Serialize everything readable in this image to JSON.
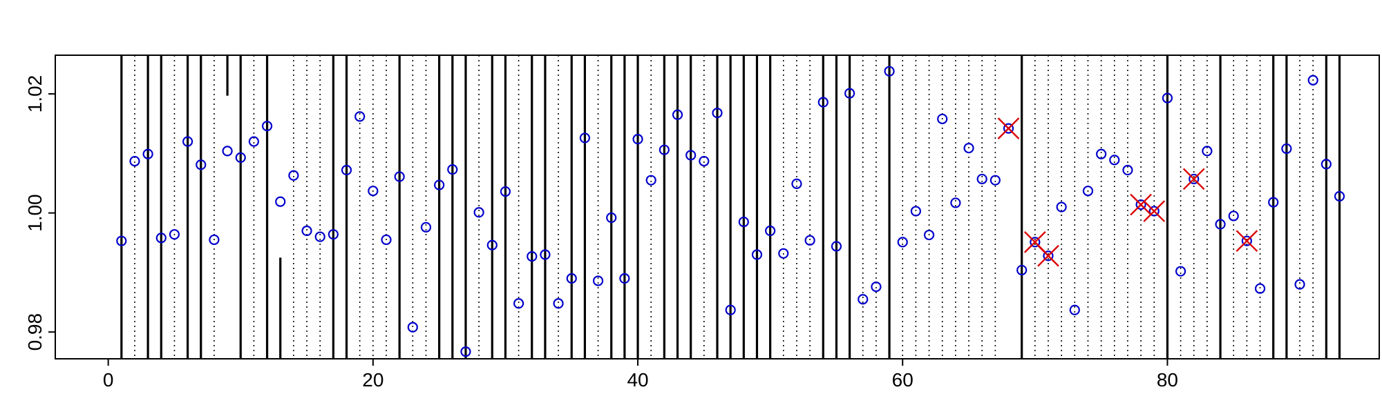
{
  "chart_data": {
    "type": "scatter",
    "title": "",
    "xlabel": "",
    "ylabel": "",
    "xlim": [
      -4,
      96
    ],
    "ylim": [
      0.9755,
      1.0265
    ],
    "x_ticks": [
      0,
      20,
      40,
      60,
      80
    ],
    "y_ticks": [
      0.98,
      1.0,
      1.02
    ],
    "x_tick_labels": [
      "0",
      "20",
      "40",
      "60",
      "80"
    ],
    "y_tick_labels": [
      "0.98",
      "1.00",
      "1.02"
    ],
    "grid": false,
    "legend": "none",
    "colors": {
      "point": "#0000cc",
      "cross": "#dd0000",
      "line": "#000000"
    },
    "points": [
      {
        "x": 1,
        "y": 0.9953
      },
      {
        "x": 2,
        "y": 1.0087
      },
      {
        "x": 3,
        "y": 1.0099
      },
      {
        "x": 4,
        "y": 0.9958
      },
      {
        "x": 5,
        "y": 0.9964
      },
      {
        "x": 6,
        "y": 1.012
      },
      {
        "x": 7,
        "y": 1.0081
      },
      {
        "x": 8,
        "y": 0.9955
      },
      {
        "x": 9,
        "y": 1.0104
      },
      {
        "x": 10,
        "y": 1.0093
      },
      {
        "x": 11,
        "y": 1.012
      },
      {
        "x": 12,
        "y": 1.0146
      },
      {
        "x": 13,
        "y": 1.0019
      },
      {
        "x": 14,
        "y": 1.0063
      },
      {
        "x": 15,
        "y": 0.997
      },
      {
        "x": 16,
        "y": 0.996
      },
      {
        "x": 17,
        "y": 0.9964
      },
      {
        "x": 18,
        "y": 1.0072
      },
      {
        "x": 19,
        "y": 1.0162
      },
      {
        "x": 20,
        "y": 1.0037
      },
      {
        "x": 21,
        "y": 0.9955
      },
      {
        "x": 22,
        "y": 1.0061
      },
      {
        "x": 23,
        "y": 0.9808
      },
      {
        "x": 24,
        "y": 0.9976
      },
      {
        "x": 25,
        "y": 1.0047
      },
      {
        "x": 26,
        "y": 1.0073
      },
      {
        "x": 27,
        "y": 0.9767
      },
      {
        "x": 28,
        "y": 1.0001
      },
      {
        "x": 29,
        "y": 0.9946
      },
      {
        "x": 30,
        "y": 1.0036
      },
      {
        "x": 31,
        "y": 0.9848
      },
      {
        "x": 32,
        "y": 0.9927
      },
      {
        "x": 33,
        "y": 0.993
      },
      {
        "x": 34,
        "y": 0.9848
      },
      {
        "x": 35,
        "y": 0.989
      },
      {
        "x": 36,
        "y": 1.0126
      },
      {
        "x": 37,
        "y": 0.9886
      },
      {
        "x": 38,
        "y": 0.9992
      },
      {
        "x": 39,
        "y": 0.989
      },
      {
        "x": 40,
        "y": 1.0124
      },
      {
        "x": 41,
        "y": 1.0055
      },
      {
        "x": 42,
        "y": 1.0106
      },
      {
        "x": 43,
        "y": 1.0165
      },
      {
        "x": 44,
        "y": 1.0097
      },
      {
        "x": 45,
        "y": 1.0087
      },
      {
        "x": 46,
        "y": 1.0168
      },
      {
        "x": 47,
        "y": 0.9837
      },
      {
        "x": 48,
        "y": 0.9985
      },
      {
        "x": 49,
        "y": 0.993
      },
      {
        "x": 50,
        "y": 0.997
      },
      {
        "x": 51,
        "y": 0.9932
      },
      {
        "x": 52,
        "y": 1.0049
      },
      {
        "x": 53,
        "y": 0.9954
      },
      {
        "x": 54,
        "y": 1.0186
      },
      {
        "x": 55,
        "y": 0.9944
      },
      {
        "x": 56,
        "y": 1.0201
      },
      {
        "x": 57,
        "y": 0.9855
      },
      {
        "x": 58,
        "y": 0.9876
      },
      {
        "x": 59,
        "y": 1.0238
      },
      {
        "x": 60,
        "y": 0.9951
      },
      {
        "x": 61,
        "y": 1.0003
      },
      {
        "x": 62,
        "y": 0.9963
      },
      {
        "x": 63,
        "y": 1.0158
      },
      {
        "x": 64,
        "y": 1.0017
      },
      {
        "x": 65,
        "y": 1.0109
      },
      {
        "x": 66,
        "y": 1.0057
      },
      {
        "x": 67,
        "y": 1.0055
      },
      {
        "x": 68,
        "y": 1.0142
      },
      {
        "x": 69,
        "y": 0.9904
      },
      {
        "x": 70,
        "y": 0.9951
      },
      {
        "x": 71,
        "y": 0.9928
      },
      {
        "x": 72,
        "y": 1.001
      },
      {
        "x": 73,
        "y": 0.9837
      },
      {
        "x": 74,
        "y": 1.0037
      },
      {
        "x": 75,
        "y": 1.0099
      },
      {
        "x": 76,
        "y": 1.0089
      },
      {
        "x": 77,
        "y": 1.0072
      },
      {
        "x": 78,
        "y": 1.0014
      },
      {
        "x": 79,
        "y": 1.0003
      },
      {
        "x": 80,
        "y": 1.0193
      },
      {
        "x": 81,
        "y": 0.9902
      },
      {
        "x": 82,
        "y": 1.0057
      },
      {
        "x": 83,
        "y": 1.0104
      },
      {
        "x": 84,
        "y": 0.9981
      },
      {
        "x": 85,
        "y": 0.9995
      },
      {
        "x": 86,
        "y": 0.9953
      },
      {
        "x": 87,
        "y": 0.9873
      },
      {
        "x": 88,
        "y": 1.0018
      },
      {
        "x": 89,
        "y": 1.0108
      },
      {
        "x": 90,
        "y": 0.988
      },
      {
        "x": 91,
        "y": 1.0223
      },
      {
        "x": 92,
        "y": 1.0082
      },
      {
        "x": 93,
        "y": 1.0028
      }
    ],
    "crossed_points": [
      68,
      70,
      71,
      78,
      79,
      82,
      86
    ],
    "solid_lines": [
      1,
      3,
      4,
      6,
      7,
      10,
      12,
      17,
      18,
      22,
      25,
      26,
      27,
      29,
      30,
      32,
      33,
      35,
      36,
      38,
      39,
      40,
      42,
      43,
      44,
      46,
      47,
      48,
      49,
      50,
      54,
      55,
      56,
      59,
      69,
      80,
      84,
      88,
      89,
      92,
      93
    ],
    "dotted_lines": [
      2,
      5,
      8,
      11,
      14,
      15,
      16,
      19,
      20,
      21,
      23,
      24,
      28,
      31,
      34,
      37,
      41,
      45,
      51,
      52,
      53,
      57,
      58,
      60,
      61,
      62,
      63,
      64,
      65,
      66,
      67,
      70,
      71,
      72,
      73,
      74,
      75,
      76,
      77,
      78,
      79,
      81,
      82,
      83,
      85,
      86,
      87,
      90,
      91
    ],
    "partial_lines": [
      {
        "x": 9,
        "y_from": 1.0265,
        "y_to": 1.0197
      },
      {
        "x": 13,
        "y_from": 0.9755,
        "y_to": 0.9925
      }
    ]
  }
}
